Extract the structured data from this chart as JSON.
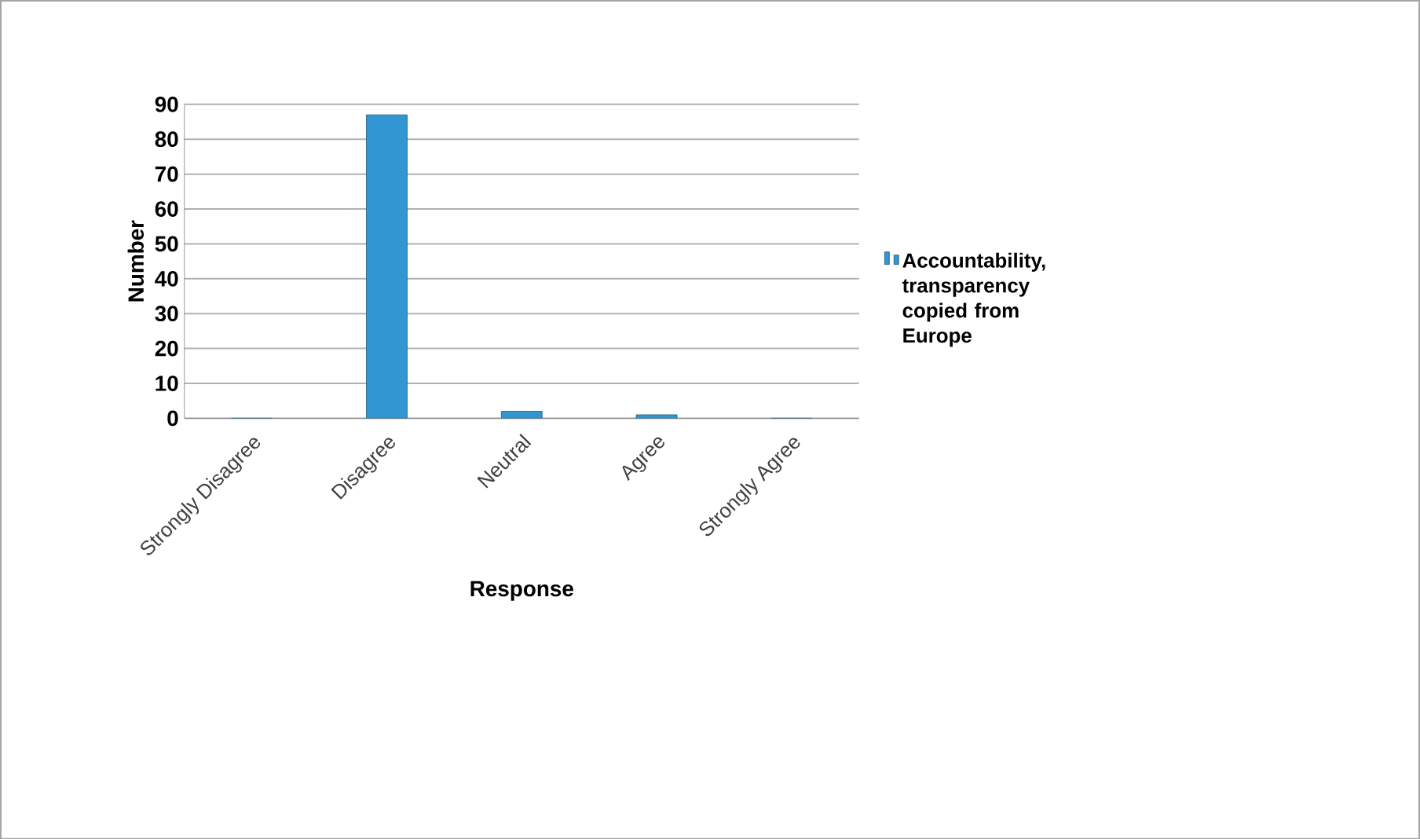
{
  "chart_data": {
    "type": "bar",
    "xlabel": "Response",
    "ylabel": "Number",
    "categories": [
      "Strongly Disagree",
      "Disagree",
      "Neutral",
      "Agree",
      "Strongly Agree"
    ],
    "series": [
      {
        "name": "Accountability, transparency copied from Europe",
        "color": "#3296d2",
        "values": [
          0,
          87,
          2,
          1,
          0
        ]
      }
    ],
    "ylim": [
      0,
      90
    ],
    "yticks": [
      0,
      10,
      20,
      30,
      40,
      50,
      60,
      70,
      80,
      90
    ],
    "grid": "y",
    "legend": "right"
  }
}
